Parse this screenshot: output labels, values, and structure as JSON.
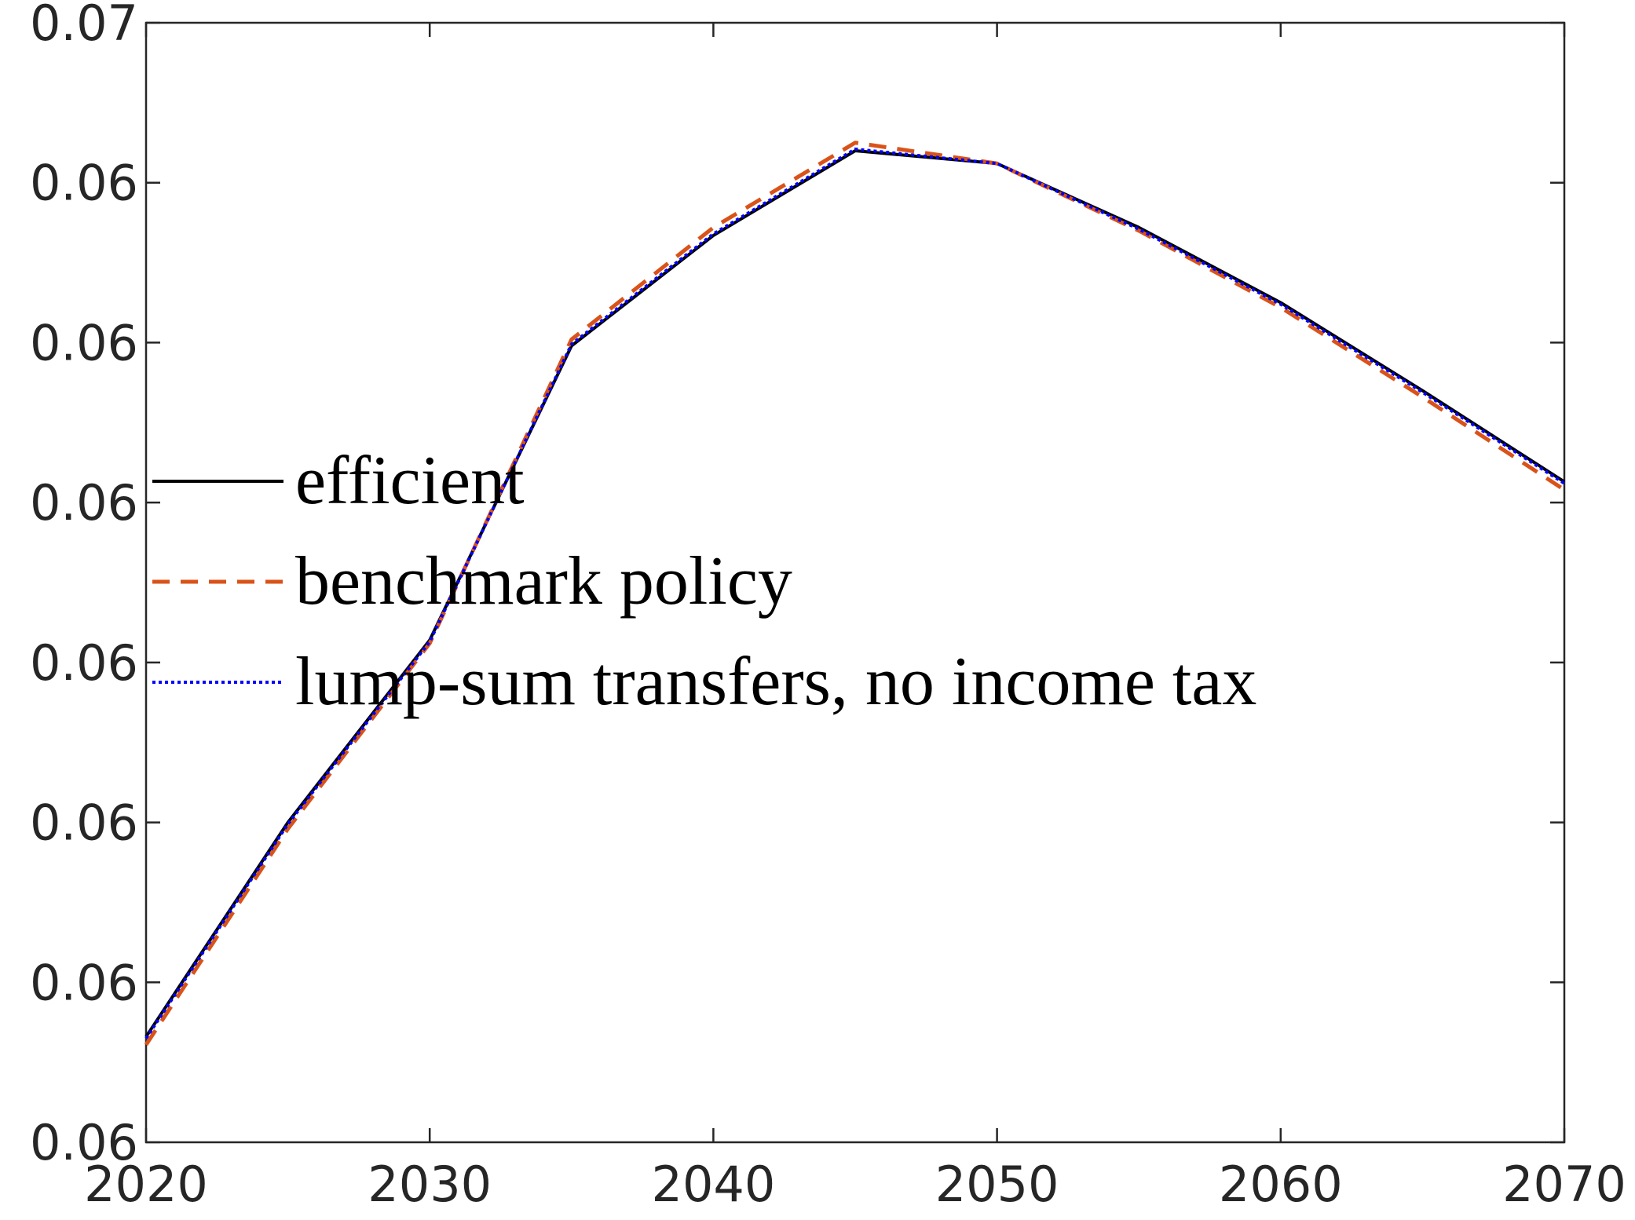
{
  "chart_data": {
    "type": "line",
    "x": [
      2020,
      2025,
      2030,
      2035,
      2040,
      2045,
      2050,
      2055,
      2060,
      2065,
      2070
    ],
    "series": [
      {
        "name": "efficient",
        "color": "#000000",
        "style": "solid",
        "values": [
          0.05866,
          0.06,
          0.06114,
          0.06298,
          0.06367,
          0.0642,
          0.06412,
          0.06372,
          0.06325,
          0.0627,
          0.06213
        ]
      },
      {
        "name": "benchmark policy",
        "color": "#d95319",
        "style": "dashed",
        "values": [
          0.05861,
          0.05996,
          0.06112,
          0.06302,
          0.06372,
          0.06425,
          0.06412,
          0.0637,
          0.06322,
          0.06266,
          0.06208
        ]
      },
      {
        "name": "lump-sum transfers, no income tax",
        "color": "#0000ff",
        "style": "dotted",
        "values": [
          0.05865,
          0.05999,
          0.06113,
          0.06299,
          0.06368,
          0.06421,
          0.06412,
          0.06371,
          0.06324,
          0.06269,
          0.06212
        ]
      }
    ],
    "xlim": [
      2020,
      2070
    ],
    "xticks": [
      2020,
      2030,
      2040,
      2050,
      2060,
      2070
    ],
    "ylim": [
      0.058,
      0.065
    ],
    "yticks": [
      {
        "value": 0.058,
        "label": "0.06"
      },
      {
        "value": 0.059,
        "label": "0.06"
      },
      {
        "value": 0.06,
        "label": "0.06"
      },
      {
        "value": 0.061,
        "label": "0.06"
      },
      {
        "value": 0.062,
        "label": "0.06"
      },
      {
        "value": 0.063,
        "label": "0.06"
      },
      {
        "value": 0.064,
        "label": "0.06"
      },
      {
        "value": 0.065,
        "label": "0.07"
      }
    ],
    "grid": false,
    "legend": "west"
  }
}
